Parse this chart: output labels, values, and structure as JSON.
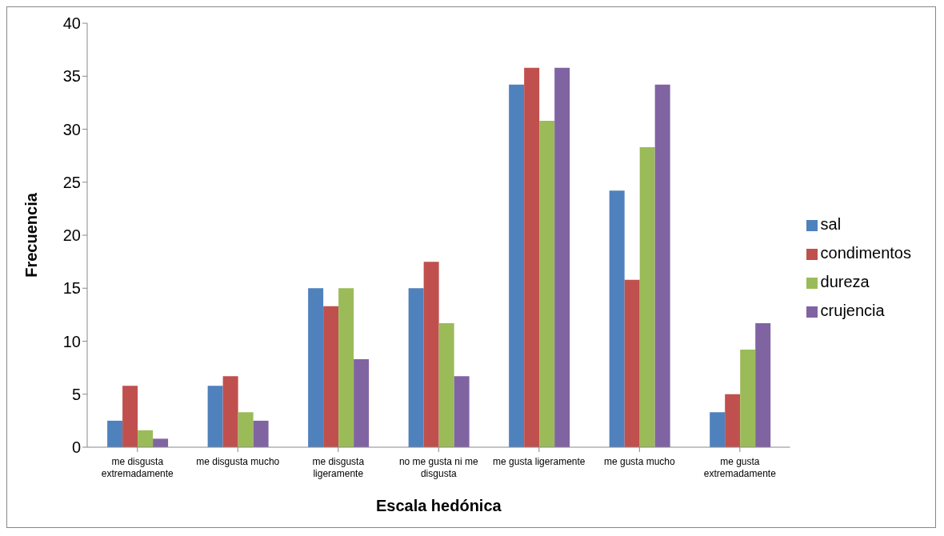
{
  "chart_data": {
    "type": "bar",
    "xlabel": "Escala hedónica",
    "ylabel": "Frecuencia",
    "categories": [
      "me disgusta extremadamente",
      "me disgusta mucho",
      "me disgusta ligeramente",
      "no me gusta ni me disgusta",
      "me gusta ligeramente",
      "me gusta mucho",
      "me gusta extremadamente"
    ],
    "series": [
      {
        "name": "sal",
        "color": "#4f81bd",
        "values": [
          2.5,
          5.8,
          15,
          15,
          34.2,
          24.2,
          3.3
        ]
      },
      {
        "name": "condimentos",
        "color": "#c0504d",
        "values": [
          5.8,
          6.7,
          13.3,
          17.5,
          35.8,
          15.8,
          5
        ]
      },
      {
        "name": "dureza",
        "color": "#9bbb59",
        "values": [
          1.6,
          3.3,
          15,
          11.7,
          30.8,
          28.3,
          9.2
        ]
      },
      {
        "name": "crujencia",
        "color": "#8064a2",
        "values": [
          0.8,
          2.5,
          8.3,
          6.7,
          35.8,
          34.2,
          11.7
        ]
      }
    ],
    "ylim": [
      0,
      40
    ],
    "yticks": [
      0,
      5,
      10,
      15,
      20,
      25,
      30,
      35,
      40
    ],
    "grid": false,
    "legend": "right"
  }
}
